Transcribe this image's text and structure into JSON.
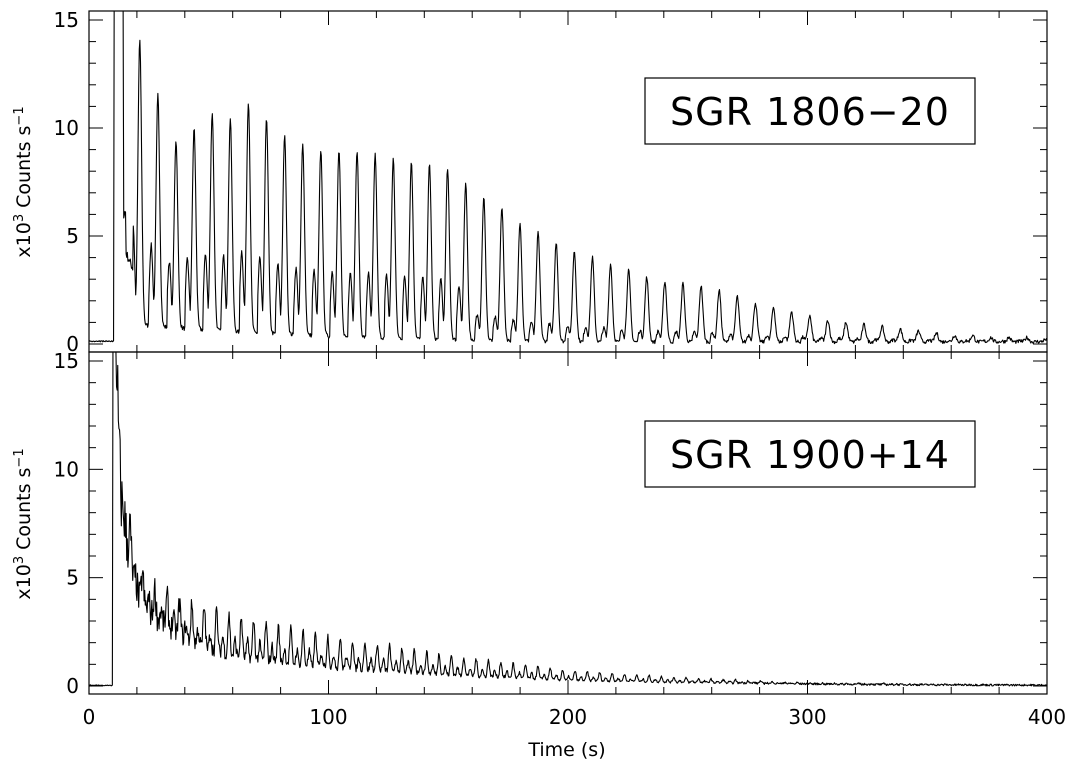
{
  "chart_data": [
    {
      "type": "line",
      "panel_label": "SGR 1806−20",
      "ylabel_prefix": "x10",
      "ylabel_exp": "3",
      "ylabel_main": " Counts s",
      "ylabel_unit_exp": "−1",
      "xlim": [
        0,
        400
      ],
      "ylim": [
        0,
        15
      ],
      "xticks": [
        0,
        100,
        200,
        300,
        400
      ],
      "yticks": [
        0,
        5,
        10,
        15
      ],
      "y_tick_labels": [
        "0",
        "5",
        "10",
        "15"
      ],
      "burst": {
        "onset_s": 10.5,
        "spike_top_s": 14.5,
        "pre_burst_level": 0.1,
        "pulse_period_s": 7.56,
        "first_pulse_s": 21.2,
        "pulse_peaks": [
          13.2,
          10.7,
          8.7,
          9.3,
          10.1,
          9.9,
          10.7,
          10.0,
          9.2,
          8.8,
          8.6,
          8.6,
          8.6,
          8.5,
          8.3,
          8.2,
          8.1,
          7.9,
          7.2,
          6.6,
          6.2,
          5.5,
          5.0,
          4.6,
          4.2,
          3.9,
          3.6,
          3.3,
          3.0,
          2.8,
          2.7,
          2.6,
          2.4,
          2.1,
          1.8,
          1.6,
          1.4,
          1.2,
          1.0,
          0.9,
          0.8,
          0.7,
          0.6,
          0.5,
          0.4,
          0.3,
          0.3,
          0.2,
          0.2,
          0.2
        ]
      }
    },
    {
      "type": "line",
      "panel_label": "SGR 1900+14",
      "ylabel_prefix": "x10",
      "ylabel_exp": "3",
      "ylabel_main": " Counts s",
      "ylabel_unit_exp": "−1",
      "xlabel": "Time (s)",
      "xlim": [
        0,
        400
      ],
      "ylim": [
        0,
        15
      ],
      "xticks": [
        0,
        100,
        200,
        300,
        400
      ],
      "x_tick_labels": [
        "0",
        "100",
        "200",
        "300",
        "400"
      ],
      "yticks": [
        0,
        5,
        10,
        15
      ],
      "y_tick_labels": [
        "0",
        "5",
        "10",
        "15"
      ],
      "burst": {
        "onset_s": 10.0,
        "pre_burst_level": 0.0,
        "peak_level": 15.2,
        "decay_points": [
          [
            12,
            15.2
          ],
          [
            14,
            10.5
          ],
          [
            16,
            8.8
          ],
          [
            18,
            7.0
          ],
          [
            20,
            5.6
          ],
          [
            25,
            4.6
          ],
          [
            30,
            4.0
          ],
          [
            40,
            3.0
          ],
          [
            50,
            2.3
          ],
          [
            60,
            1.9
          ],
          [
            80,
            1.5
          ],
          [
            100,
            1.2
          ],
          [
            120,
            1.0
          ],
          [
            150,
            0.7
          ],
          [
            180,
            0.5
          ],
          [
            200,
            0.35
          ],
          [
            250,
            0.22
          ],
          [
            300,
            0.12
          ],
          [
            350,
            0.07
          ],
          [
            400,
            0.05
          ]
        ],
        "pulse_period_s": 5.16,
        "pulse_envelope": [
          [
            15,
            1.5
          ],
          [
            30,
            1.2
          ],
          [
            50,
            1.9
          ],
          [
            80,
            1.6
          ],
          [
            120,
            1.2
          ],
          [
            160,
            0.8
          ],
          [
            200,
            0.45
          ],
          [
            250,
            0.2
          ],
          [
            300,
            0.05
          ],
          [
            400,
            0.0
          ]
        ]
      }
    }
  ]
}
